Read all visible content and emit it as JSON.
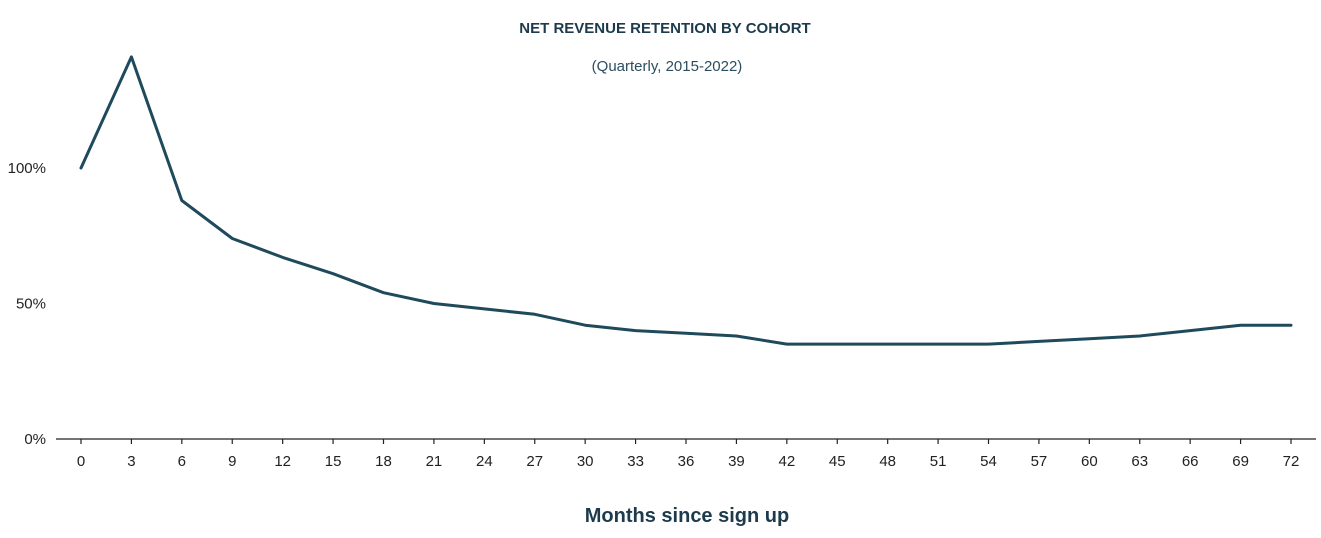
{
  "chart_data": {
    "type": "line",
    "title": "NET REVENUE RETENTION BY COHORT",
    "subtitle": "(Quarterly, 2015-2022)",
    "xlabel": "Months since sign up",
    "ylabel": "",
    "x": [
      0,
      3,
      6,
      9,
      12,
      15,
      18,
      21,
      24,
      27,
      30,
      33,
      36,
      39,
      42,
      45,
      48,
      51,
      54,
      57,
      60,
      63,
      66,
      69,
      72
    ],
    "x_tick_labels": [
      "0",
      "3",
      "6",
      "9",
      "12",
      "15",
      "18",
      "21",
      "24",
      "27",
      "30",
      "33",
      "36",
      "39",
      "42",
      "45",
      "48",
      "51",
      "54",
      "57",
      "60",
      "63",
      "66",
      "69",
      "72"
    ],
    "y_ticks": [
      0,
      50,
      100
    ],
    "y_tick_labels": [
      "0%",
      "50%",
      "100%"
    ],
    "ylim": [
      0,
      140
    ],
    "grid": false,
    "legend": "none",
    "series": [
      {
        "name": "Net revenue retention",
        "color": "#1f4a5c",
        "values": [
          100,
          141,
          88,
          74,
          67,
          61,
          54,
          50,
          48,
          46,
          42,
          40,
          39,
          38,
          35,
          35,
          35,
          35,
          35,
          36,
          37,
          38,
          40,
          42,
          42
        ]
      }
    ]
  }
}
